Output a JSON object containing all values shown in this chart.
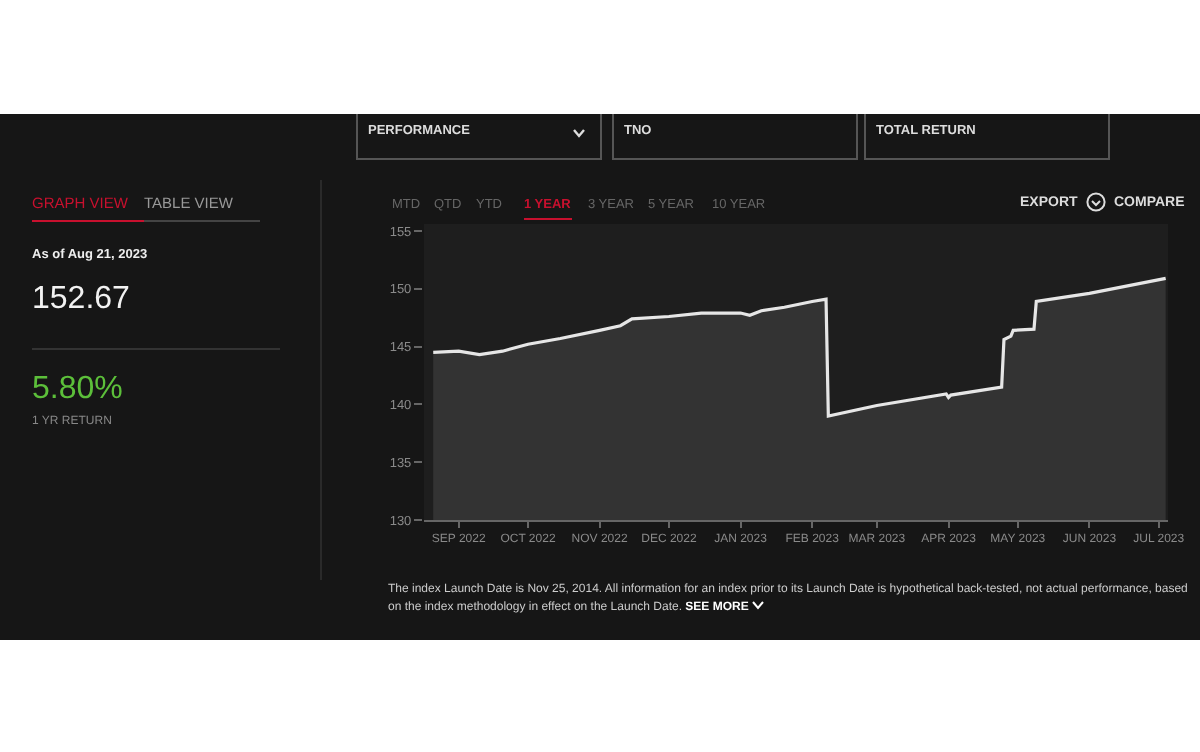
{
  "chart_data": {
    "type": "area",
    "x": [
      "2022-08-21",
      "2022-09-01",
      "2022-09-10",
      "2022-09-20",
      "2022-10-01",
      "2022-10-15",
      "2022-11-01",
      "2022-11-10",
      "2022-11-15",
      "2022-12-01",
      "2022-12-15",
      "2023-01-01",
      "2023-01-05",
      "2023-01-10",
      "2023-01-20",
      "2023-02-01",
      "2023-02-07",
      "2023-02-08",
      "2023-03-01",
      "2023-03-31",
      "2023-04-01",
      "2023-04-02",
      "2023-04-24",
      "2023-04-25",
      "2023-04-28",
      "2023-04-29",
      "2023-05-08",
      "2023-05-09",
      "2023-06-01",
      "2023-07-04"
    ],
    "series": [
      {
        "color": "#e6e6e6",
        "values": [
          144.5,
          144.6,
          144.3,
          144.6,
          145.2,
          145.7,
          146.4,
          146.8,
          147.4,
          147.6,
          147.9,
          147.9,
          147.7,
          148.1,
          148.4,
          148.9,
          149.1,
          139.0,
          139.9,
          140.9,
          140.6,
          140.8,
          141.5,
          145.6,
          145.9,
          146.4,
          146.5,
          148.9,
          149.6,
          150.9
        ]
      }
    ],
    "xlim": [
      "2022-08-17",
      "2023-07-05"
    ],
    "xticks": [
      {
        "value": "2022-09-01",
        "label": "SEP 2022"
      },
      {
        "value": "2022-10-01",
        "label": "OCT 2022"
      },
      {
        "value": "2022-11-01",
        "label": "NOV 2022"
      },
      {
        "value": "2022-12-01",
        "label": "DEC 2022"
      },
      {
        "value": "2023-01-01",
        "label": "JAN 2023"
      },
      {
        "value": "2023-02-01",
        "label": "FEB 2023"
      },
      {
        "value": "2023-03-01",
        "label": "MAR 2023"
      },
      {
        "value": "2023-04-01",
        "label": "APR 2023"
      },
      {
        "value": "2023-05-01",
        "label": "MAY 2023"
      },
      {
        "value": "2023-06-01",
        "label": "JUN 2023"
      },
      {
        "value": "2023-07-01",
        "label": "JUL 2023"
      }
    ],
    "ylim": [
      130,
      155.6
    ],
    "yticks": [
      130,
      135,
      140,
      145,
      150,
      155
    ],
    "annotations": [
      "GRAPH VIEW",
      "TABLE VIEW",
      "As of Aug 21, 2023",
      "152.67",
      "5.80%",
      "1 YR RETURN",
      "PERFORMANCE",
      "TNO",
      "TOTAL RETURN",
      "MTD",
      "QTD",
      "YTD",
      "1 YEAR",
      "3 YEAR",
      "5 YEAR",
      "10 YEAR",
      "EXPORT",
      "COMPARE",
      "The index Launch Date is Nov 25, 2014. All information for an index prior to its Launch Date is hypothetical back-tested, not actual performance, based on the index methodology in effect on the Launch Date.",
      "SEE MORE"
    ]
  }
}
